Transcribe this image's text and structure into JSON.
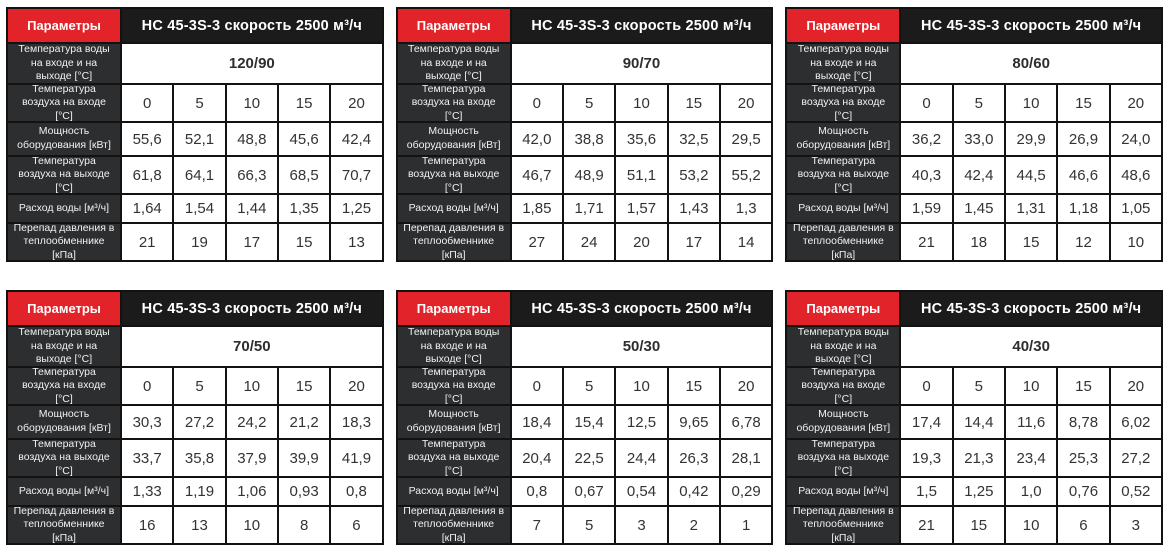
{
  "colors": {
    "accent_red": "#e3232a",
    "header_black": "#1b1b1b",
    "label_dark_gray": "#2c2e30",
    "cell_white": "#ffffff",
    "data_text": "#333333"
  },
  "shared": {
    "params_label": "Параметры",
    "title": "НС 45-3S-3 скорость 2500 м³/ч",
    "row_labels": {
      "water_temp": "Температура воды на входе и на выходе [°C]",
      "air_in": "Температура воздуха на входе [°C]",
      "power": "Мощность оборудования [кВт]",
      "air_out": "Температура воздуха на выходе [°C]",
      "water_flow": "Расход воды [м³/ч]",
      "pressure": "Перепад давления в теплообменнике [кПа]"
    },
    "air_in_values": [
      "0",
      "5",
      "10",
      "15",
      "20"
    ]
  },
  "tables": [
    {
      "water_temp": "120/90",
      "power": [
        "55,6",
        "52,1",
        "48,8",
        "45,6",
        "42,4"
      ],
      "air_out": [
        "61,8",
        "64,1",
        "66,3",
        "68,5",
        "70,7"
      ],
      "water_flow": [
        "1,64",
        "1,54",
        "1,44",
        "1,35",
        "1,25"
      ],
      "pressure": [
        "21",
        "19",
        "17",
        "15",
        "13"
      ]
    },
    {
      "water_temp": "90/70",
      "power": [
        "42,0",
        "38,8",
        "35,6",
        "32,5",
        "29,5"
      ],
      "air_out": [
        "46,7",
        "48,9",
        "51,1",
        "53,2",
        "55,2"
      ],
      "water_flow": [
        "1,85",
        "1,71",
        "1,57",
        "1,43",
        "1,3"
      ],
      "pressure": [
        "27",
        "24",
        "20",
        "17",
        "14"
      ]
    },
    {
      "water_temp": "80/60",
      "power": [
        "36,2",
        "33,0",
        "29,9",
        "26,9",
        "24,0"
      ],
      "air_out": [
        "40,3",
        "42,4",
        "44,5",
        "46,6",
        "48,6"
      ],
      "water_flow": [
        "1,59",
        "1,45",
        "1,31",
        "1,18",
        "1,05"
      ],
      "pressure": [
        "21",
        "18",
        "15",
        "12",
        "10"
      ]
    },
    {
      "water_temp": "70/50",
      "power": [
        "30,3",
        "27,2",
        "24,2",
        "21,2",
        "18,3"
      ],
      "air_out": [
        "33,7",
        "35,8",
        "37,9",
        "39,9",
        "41,9"
      ],
      "water_flow": [
        "1,33",
        "1,19",
        "1,06",
        "0,93",
        "0,8"
      ],
      "pressure": [
        "16",
        "13",
        "10",
        "8",
        "6"
      ]
    },
    {
      "water_temp": "50/30",
      "power": [
        "18,4",
        "15,4",
        "12,5",
        "9,65",
        "6,78"
      ],
      "air_out": [
        "20,4",
        "22,5",
        "24,4",
        "26,3",
        "28,1"
      ],
      "water_flow": [
        "0,8",
        "0,67",
        "0,54",
        "0,42",
        "0,29"
      ],
      "pressure": [
        "7",
        "5",
        "3",
        "2",
        "1"
      ]
    },
    {
      "water_temp": "40/30",
      "power": [
        "17,4",
        "14,4",
        "11,6",
        "8,78",
        "6,02"
      ],
      "air_out": [
        "19,3",
        "21,3",
        "23,4",
        "25,3",
        "27,2"
      ],
      "water_flow": [
        "1,5",
        "1,25",
        "1,0",
        "0,76",
        "0,52"
      ],
      "pressure": [
        "21",
        "15",
        "10",
        "6",
        "3"
      ]
    }
  ]
}
